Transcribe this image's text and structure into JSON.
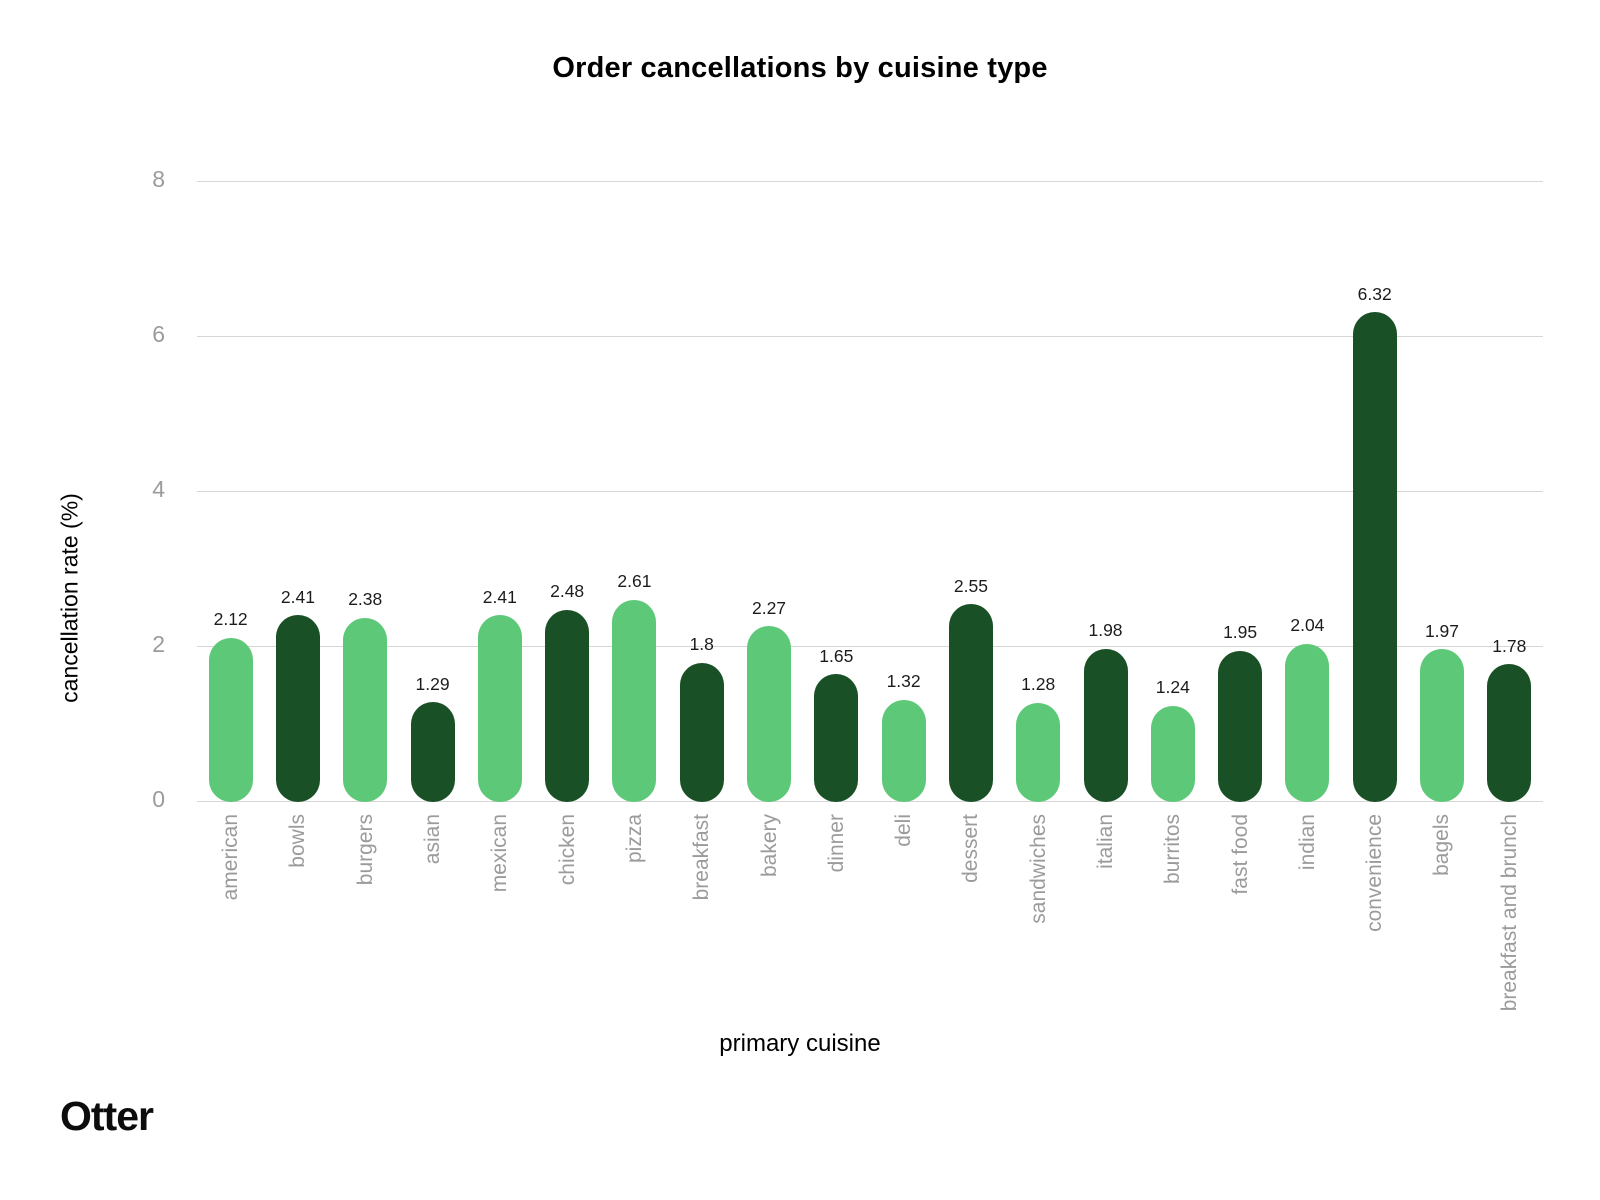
{
  "branding": {
    "logo_text": "Otter"
  },
  "chart_data": {
    "type": "bar",
    "title": "Order cancellations by cuisine type",
    "xlabel": "primary cuisine",
    "ylabel": "cancellation rate (%)",
    "categories": [
      "american",
      "bowls",
      "burgers",
      "asian",
      "mexican",
      "chicken",
      "pizza",
      "breakfast",
      "bakery",
      "dinner",
      "deli",
      "dessert",
      "sandwiches",
      "italian",
      "burritos",
      "fast food",
      "indian",
      "convenience",
      "bagels",
      "breakfast and brunch"
    ],
    "values": [
      2.12,
      2.41,
      2.38,
      1.29,
      2.41,
      2.48,
      2.61,
      1.8,
      2.27,
      1.65,
      1.32,
      2.55,
      1.28,
      1.98,
      1.24,
      1.95,
      2.04,
      6.32,
      1.97,
      1.78
    ],
    "value_labels": [
      "2.12",
      "2.41",
      "2.38",
      "1.29",
      "2.41",
      "2.48",
      "2.61",
      "1.8",
      "2.27",
      "1.65",
      "1.32",
      "2.55",
      "1.28",
      "1.98",
      "1.24",
      "1.95",
      "2.04",
      "6.32",
      "1.97",
      "1.78"
    ],
    "ylim": [
      0,
      8
    ],
    "yticks": [
      0,
      2,
      4,
      6,
      8
    ],
    "ytick_labels": [
      "0",
      "2",
      "4",
      "6",
      "8"
    ],
    "grid": true,
    "legend_position": "none",
    "bar_colors_alternating": [
      "#5dc877",
      "#1a5026"
    ],
    "gridline_color": "#d6d6d6",
    "tick_label_color": "#9b9b9b",
    "value_label_color": "#1c1c1c"
  }
}
